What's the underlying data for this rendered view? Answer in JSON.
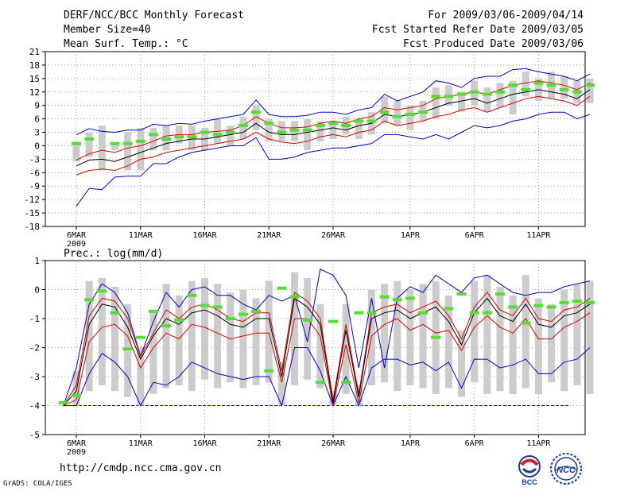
{
  "header": {
    "title": "DERF/NCC/BCC Monthly Forecast",
    "member_size": "Member Size=40",
    "variable": "Mean Surf. Temp.: °C",
    "period": "For 2009/03/06-2009/04/14",
    "start_date": "Fcst Started Refer Date 2009/03/05",
    "produced_date": "Fcst Produced Date 2009/03/06"
  },
  "colors": {
    "envelope": "#0000cc",
    "spread": "#dd0000",
    "mean": "#000000",
    "box": "#cccccc",
    "marker": "#55dd33",
    "baseline": "#0000cc",
    "grid": "#888888"
  },
  "chart_data": [
    {
      "type": "line",
      "title": "Mean Surf. Temp.: °C",
      "x_start_label": "6MAR",
      "year_label": "2009",
      "x_ticks": [
        {
          "day": 0,
          "label": "6MAR"
        },
        {
          "day": 5,
          "label": "11MAR"
        },
        {
          "day": 10,
          "label": "16MAR"
        },
        {
          "day": 15,
          "label": "21MAR"
        },
        {
          "day": 20,
          "label": "26MAR"
        },
        {
          "day": 26,
          "label": "1APR"
        },
        {
          "day": 31,
          "label": "6APR"
        },
        {
          "day": 36,
          "label": "11APR"
        }
      ],
      "ylim": [
        -18,
        21
      ],
      "y_ticks": [
        -18,
        -15,
        -12,
        -9,
        -6,
        -3,
        0,
        3,
        6,
        9,
        12,
        15,
        18,
        21
      ],
      "series": [
        {
          "name": "max",
          "values": [
            2.5,
            3.8,
            3.2,
            3.0,
            3.5,
            3.5,
            4.8,
            4.5,
            5.0,
            4.8,
            5.5,
            6.0,
            6.5,
            7.0,
            10.2,
            7.0,
            6.5,
            6.5,
            6.8,
            7.5,
            7.5,
            7.0,
            8.0,
            8.5,
            11.5,
            10.0,
            11.0,
            12.0,
            14.5,
            14.0,
            13.0,
            15.0,
            15.5,
            15.5,
            17.0,
            17.2,
            16.5,
            16.0,
            15.5,
            14.5,
            16.0
          ]
        },
        {
          "name": "upper",
          "values": [
            -3.2,
            -1.8,
            -1.0,
            -1.5,
            -0.5,
            0.0,
            1.0,
            2.2,
            2.5,
            2.5,
            3.0,
            3.2,
            3.5,
            4.5,
            6.5,
            5.0,
            4.0,
            4.0,
            4.2,
            5.0,
            5.5,
            5.0,
            6.0,
            6.5,
            8.5,
            8.0,
            8.5,
            9.0,
            10.5,
            11.0,
            11.5,
            12.0,
            11.5,
            12.5,
            13.5,
            14.0,
            14.5,
            14.0,
            13.5,
            12.5,
            14.0
          ]
        },
        {
          "name": "mean",
          "values": [
            -4.5,
            -3.2,
            -3.0,
            -3.5,
            -2.5,
            -1.5,
            -0.5,
            0.5,
            1.0,
            1.5,
            1.5,
            2.0,
            2.5,
            3.0,
            5.0,
            3.0,
            2.5,
            2.5,
            3.0,
            3.5,
            4.0,
            3.5,
            4.5,
            5.0,
            7.0,
            6.5,
            7.0,
            7.5,
            8.5,
            9.5,
            10.0,
            10.5,
            9.5,
            10.5,
            11.5,
            12.0,
            12.5,
            12.0,
            11.5,
            10.5,
            12.5
          ]
        },
        {
          "name": "lower",
          "values": [
            -6.5,
            -5.5,
            -5.2,
            -5.5,
            -4.5,
            -3.0,
            -2.5,
            -1.5,
            -1.0,
            -0.5,
            0.0,
            0.5,
            1.0,
            1.5,
            3.0,
            1.5,
            0.8,
            0.5,
            1.0,
            2.0,
            2.5,
            2.0,
            3.0,
            3.5,
            5.5,
            4.5,
            5.0,
            5.5,
            6.5,
            7.0,
            8.0,
            8.5,
            7.5,
            8.5,
            9.5,
            10.5,
            11.0,
            10.5,
            10.0,
            9.0,
            11.0
          ]
        },
        {
          "name": "min",
          "values": [
            -13.5,
            -9.5,
            -9.8,
            -7.0,
            -6.8,
            -6.8,
            -4.0,
            -4.0,
            -2.5,
            -1.5,
            -1.0,
            -0.5,
            0.0,
            0.0,
            1.8,
            -3.0,
            -3.0,
            -2.5,
            -1.5,
            -1.0,
            -0.5,
            -0.5,
            0.0,
            0.5,
            2.5,
            2.5,
            2.0,
            1.5,
            2.5,
            1.5,
            3.0,
            4.5,
            4.0,
            4.5,
            5.5,
            6.0,
            7.0,
            7.5,
            7.5,
            6.0,
            7.0
          ]
        },
        {
          "name": "box_low",
          "values": [
            -3.5,
            -2.5,
            -5.5,
            -1.0,
            -5.5,
            -5.5,
            -1.0,
            -1.0,
            0.5,
            -1.0,
            -1.0,
            0.5,
            0.0,
            1.5,
            3.5,
            1.0,
            1.0,
            1.0,
            -1.0,
            1.0,
            1.5,
            2.5,
            1.5,
            2.5,
            5.0,
            4.5,
            3.5,
            5.5,
            6.0,
            9.0,
            7.5,
            9.0,
            7.5,
            8.5,
            7.0,
            11.0,
            10.0,
            10.5,
            10.5,
            9.5,
            9.5
          ]
        },
        {
          "name": "box_high",
          "values": [
            0.5,
            3.0,
            4.5,
            0.5,
            3.0,
            4.0,
            4.0,
            4.5,
            4.5,
            4.5,
            4.0,
            6.0,
            4.5,
            6.5,
            9.0,
            6.0,
            5.5,
            5.5,
            6.0,
            5.5,
            5.5,
            6.5,
            6.0,
            7.5,
            11.0,
            10.0,
            9.0,
            10.0,
            13.0,
            13.5,
            12.0,
            14.5,
            13.0,
            14.0,
            14.5,
            16.5,
            15.0,
            16.5,
            15.5,
            14.5,
            15.0
          ]
        },
        {
          "name": "marker",
          "values": [
            0.5,
            1.5,
            null,
            0.5,
            0.5,
            1.0,
            2.5,
            1.5,
            2.0,
            2.0,
            3.0,
            2.5,
            3.0,
            4.5,
            7.5,
            5.0,
            3.0,
            3.5,
            3.5,
            4.5,
            5.0,
            4.5,
            5.5,
            5.5,
            7.5,
            6.5,
            7.0,
            7.5,
            11.0,
            11.0,
            11.5,
            12.0,
            11.5,
            12.0,
            13.5,
            12.5,
            14.0,
            13.5,
            12.5,
            12.0,
            13.5
          ]
        }
      ]
    },
    {
      "type": "line",
      "title": "Prec.: log(mm/d)",
      "x_start_label": "6MAR",
      "year_label": "2009",
      "x_ticks": [
        {
          "day": 0,
          "label": "6MAR"
        },
        {
          "day": 5,
          "label": "11MAR"
        },
        {
          "day": 10,
          "label": "16MAR"
        },
        {
          "day": 15,
          "label": "21MAR"
        },
        {
          "day": 20,
          "label": "26MAR"
        },
        {
          "day": 26,
          "label": "1APR"
        },
        {
          "day": 31,
          "label": "6APR"
        },
        {
          "day": 36,
          "label": "11APR"
        }
      ],
      "ylim": [
        -5,
        1
      ],
      "y_ticks": [
        -5,
        -4,
        -3,
        -2,
        -1,
        0,
        1
      ],
      "series": [
        {
          "name": "max",
          "values": [
            -4.0,
            -2.7,
            -0.5,
            0.2,
            -0.1,
            -0.8,
            -2.3,
            -1.1,
            -0.1,
            -0.6,
            0.0,
            0.1,
            -0.2,
            -0.2,
            -0.5,
            -0.7,
            -0.2,
            -0.4,
            -0.2,
            -1.8,
            0.7,
            0.5,
            -0.2,
            -2.7,
            -0.3,
            -2.7,
            -0.3,
            0.1,
            -0.1,
            0.5,
            0.2,
            -0.1,
            0.4,
            0.5,
            0.2,
            -0.1,
            -0.2,
            -0.1,
            -0.1,
            0.1,
            0.2,
            0.3
          ]
        },
        {
          "name": "upper",
          "values": [
            -4.0,
            -3.3,
            -0.9,
            -0.3,
            -0.4,
            -1.0,
            -2.3,
            -1.5,
            -0.7,
            -1.0,
            -0.6,
            -0.5,
            -0.7,
            -1.0,
            -1.1,
            -0.8,
            -0.8,
            -2.8,
            -0.1,
            -0.4,
            -1.0,
            -3.8,
            -1.2,
            -3.6,
            -0.8,
            -0.6,
            -0.5,
            -0.8,
            -0.6,
            -0.4,
            -0.9,
            -1.7,
            -0.6,
            -0.1,
            -0.7,
            -0.9,
            -0.3,
            -1.0,
            -1.1,
            -0.7,
            -0.6,
            -0.3
          ]
        },
        {
          "name": "mean",
          "values": [
            -4.0,
            -3.5,
            -1.2,
            -0.5,
            -0.6,
            -1.3,
            -2.4,
            -1.6,
            -1.0,
            -1.2,
            -0.8,
            -0.7,
            -0.9,
            -1.2,
            -1.3,
            -1.0,
            -1.0,
            -3.0,
            -0.3,
            -0.6,
            -1.2,
            -3.9,
            -1.4,
            -3.7,
            -1.0,
            -0.8,
            -0.7,
            -1.0,
            -0.8,
            -0.6,
            -1.1,
            -1.9,
            -0.8,
            -0.3,
            -0.9,
            -1.1,
            -0.5,
            -1.2,
            -1.3,
            -0.9,
            -0.8,
            -0.5
          ]
        },
        {
          "name": "lower",
          "values": [
            -4.0,
            -3.8,
            -1.8,
            -1.3,
            -1.2,
            -1.6,
            -2.7,
            -2.0,
            -1.5,
            -1.7,
            -1.2,
            -1.3,
            -1.5,
            -1.7,
            -1.6,
            -1.5,
            -1.5,
            -3.2,
            -1.0,
            -1.0,
            -1.6,
            -4.0,
            -1.9,
            -3.9,
            -1.6,
            -1.2,
            -1.0,
            -1.4,
            -1.2,
            -1.5,
            -1.4,
            -2.1,
            -1.3,
            -0.9,
            -1.3,
            -1.5,
            -1.0,
            -1.7,
            -1.7,
            -1.3,
            -1.1,
            -0.8
          ]
        },
        {
          "name": "min",
          "values": [
            -4.0,
            -4.0,
            -2.9,
            -2.2,
            -2.5,
            -3.0,
            -4.0,
            -3.2,
            -3.3,
            -3.0,
            -2.5,
            -2.7,
            -2.9,
            -3.0,
            -3.1,
            -3.0,
            -3.0,
            -4.0,
            -2.0,
            -2.0,
            -2.8,
            -4.0,
            -3.0,
            -4.0,
            -2.7,
            -2.4,
            -2.4,
            -2.6,
            -2.5,
            -2.8,
            -2.5,
            -3.4,
            -2.4,
            -2.4,
            -2.7,
            -2.6,
            -2.4,
            -2.9,
            -2.9,
            -2.5,
            -2.4,
            -2.0
          ]
        },
        {
          "name": "box_low",
          "values": [
            -4.0,
            -4.0,
            -3.5,
            -3.3,
            -3.5,
            -3.7,
            -4.0,
            -3.6,
            -3.4,
            -3.3,
            -3.5,
            -3.1,
            -3.4,
            -3.2,
            -3.4,
            -3.3,
            -3.2,
            -4.0,
            -3.3,
            -3.1,
            -3.4,
            -4.0,
            -3.6,
            -4.0,
            -3.3,
            -3.2,
            -3.5,
            -3.3,
            -3.4,
            -3.6,
            -3.4,
            -3.7,
            -3.2,
            -3.6,
            -3.5,
            -3.6,
            -3.4,
            -3.6,
            -3.2,
            -3.5,
            -3.3,
            -3.6
          ]
        },
        {
          "name": "box_high",
          "values": [
            -4.0,
            -2.8,
            0.3,
            0.4,
            0.1,
            -0.5,
            -2.0,
            -0.8,
            0.2,
            -0.2,
            0.3,
            0.4,
            0.2,
            -0.1,
            0.0,
            -0.3,
            0.3,
            -2.5,
            0.6,
            0.4,
            -0.5,
            -3.5,
            -0.5,
            -3.3,
            0.0,
            0.2,
            0.3,
            0.0,
            0.2,
            0.3,
            -0.2,
            -1.4,
            0.3,
            0.5,
            0.1,
            -0.2,
            0.5,
            -0.3,
            -0.5,
            0.0,
            0.2,
            0.3
          ]
        },
        {
          "name": "marker",
          "values": [
            -3.9,
            -3.65,
            -0.35,
            -0.05,
            -0.8,
            -2.05,
            -1.65,
            -0.75,
            -1.25,
            -1.05,
            -0.2,
            -0.55,
            -0.6,
            -1.0,
            -0.85,
            -0.75,
            -2.8,
            0.05,
            -0.25,
            -1.05,
            -3.2,
            -1.1,
            -3.2,
            -0.8,
            -0.8,
            -0.25,
            -0.35,
            -0.3,
            -0.8,
            -1.65,
            -0.65,
            -0.15,
            -0.8,
            -0.8,
            -0.15,
            -0.6,
            -1.15,
            -0.55,
            -0.6,
            -0.45,
            -0.4,
            -0.45
          ]
        }
      ]
    }
  ],
  "footer": {
    "url": "http://cmdp.ncc.cma.gov.cn",
    "credit": "GrADS: COLA/IGES",
    "bcc_logo_text": "BCC",
    "ncc_logo_text": "NCC"
  }
}
